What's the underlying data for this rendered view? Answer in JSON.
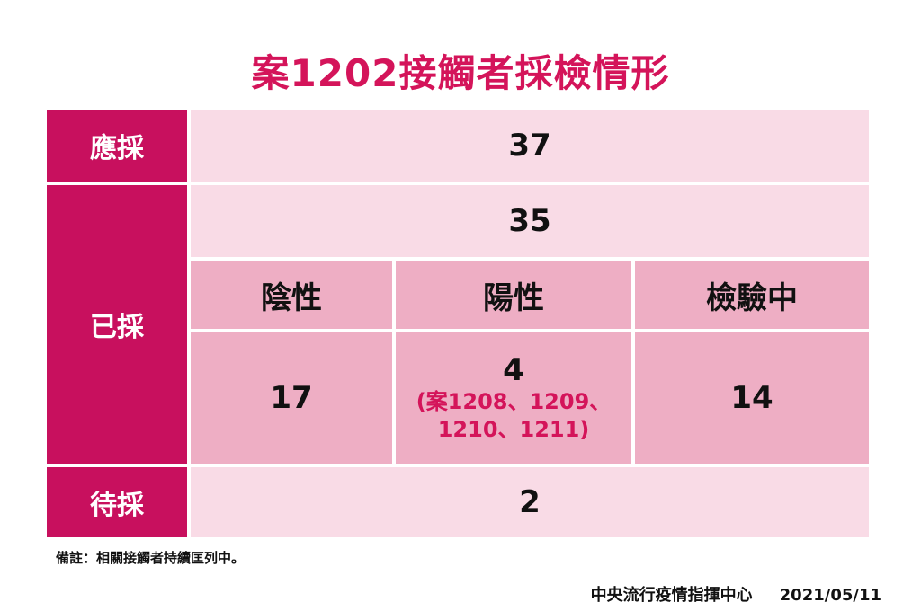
{
  "title": "案1202接觸者採檢情形",
  "rows": {
    "should_test": {
      "label": "應採",
      "value": "37"
    },
    "tested": {
      "label": "已採",
      "value": "35",
      "negative": {
        "label": "陰性",
        "value": "17"
      },
      "positive": {
        "label": "陽性",
        "value": "4",
        "cases_line1": "(案1208、1209、",
        "cases_line2": "1210、1211)"
      },
      "pending": {
        "label": "檢驗中",
        "value": "14"
      }
    },
    "awaiting": {
      "label": "待採",
      "value": "2"
    }
  },
  "note": "備註：相關接觸者持續匡列中。",
  "footer": {
    "org": "中央流行疫情指揮中心",
    "date": "2021/05/11"
  },
  "colors": {
    "accent": "#d4145a",
    "label_bg": "#c8105e",
    "light_bg": "#f9dbe6",
    "mid_bg": "#eeaec4"
  }
}
